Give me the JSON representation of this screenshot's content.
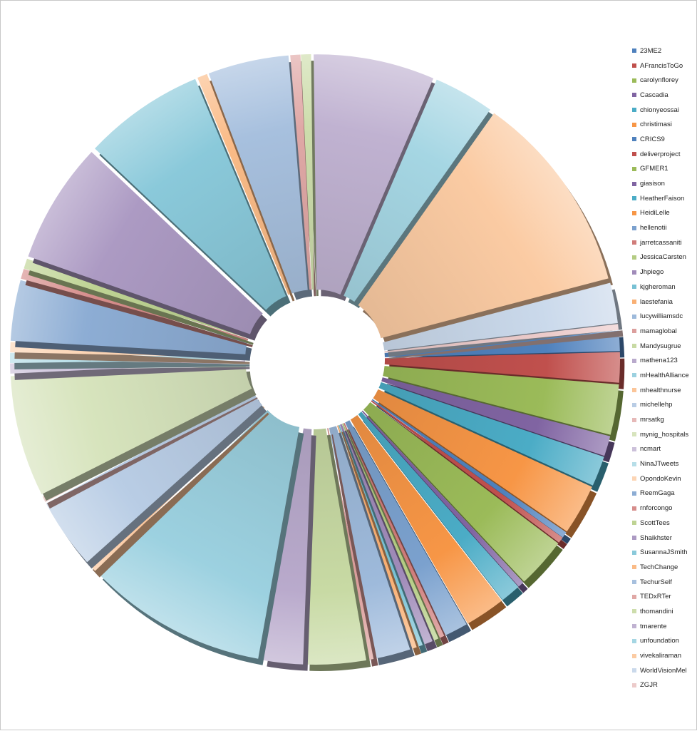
{
  "chart_data": {
    "type": "pie",
    "title": "",
    "style": "exploded-3d",
    "legend_position": "right",
    "palette": [
      "#4f81bd",
      "#c0504d",
      "#9bbb59",
      "#8064a2",
      "#4bacc6",
      "#f79646"
    ],
    "categories": [
      "23ME2",
      "AFrancisToGo",
      "carolynflorey",
      "Cascadia",
      "chionyeossai",
      "christimasi",
      "CRICS9",
      "deliverproject",
      "GFMER1",
      "giasison",
      "HeatherFaison",
      "HeidiLelle",
      "hellenotii",
      "jarretcassaniti",
      "JessicaCarsten",
      "Jhpiego",
      "kjgheroman",
      "laestefania",
      "lucywilliamsdc",
      "mamaglobal",
      "Mandysugrue",
      "mathena123",
      "mHealthAlliance",
      "mhealthnurse",
      "michellehp",
      "mrsatkg",
      "mynig_hospitals",
      "ncmart",
      "NinaJTweets",
      "OpondoKevin",
      "ReemGaga",
      "rnforcongo",
      "ScottTees",
      "Shaikhster",
      "SusannaJSmith",
      "TechChange",
      "TechurSelf",
      "TEDxRTer",
      "thomandini",
      "tmarente",
      "unfoundation",
      "vivekaliraman",
      "WorldVisionMel",
      "ZGJR"
    ],
    "values": [
      1.0,
      1.5,
      2.5,
      1.0,
      1.5,
      2.5,
      0.3,
      0.3,
      2.5,
      0.3,
      1.0,
      2.0,
      1.2,
      0.3,
      0.3,
      0.5,
      0.3,
      0.3,
      1.8,
      0.3,
      3.0,
      2.0,
      9.0,
      0.5,
      3.5,
      0.3,
      6.0,
      0.5,
      0.5,
      0.5,
      3.0,
      0.5,
      0.5,
      6.0,
      6.0,
      0.5,
      4.0,
      0.5,
      0.5,
      6.0,
      3.0,
      10.0,
      2.0,
      0.3
    ]
  }
}
